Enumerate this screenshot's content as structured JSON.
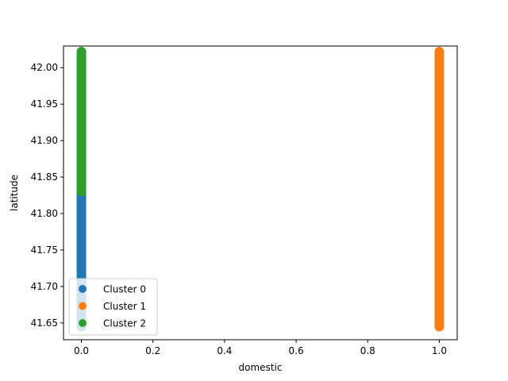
{
  "chart_data": {
    "type": "scatter",
    "title": "",
    "xlabel": "domestic",
    "ylabel": "latitude",
    "xlim": [
      -0.05,
      1.05
    ],
    "ylim": [
      41.627,
      42.0296
    ],
    "xticks": [
      0.0,
      0.2,
      0.4,
      0.6,
      0.8,
      1.0
    ],
    "xtick_labels": [
      "0.0",
      "0.2",
      "0.4",
      "0.6",
      "0.8",
      "1.0"
    ],
    "yticks": [
      41.65,
      41.7,
      41.75,
      41.8,
      41.85,
      41.9,
      41.95,
      42.0
    ],
    "ytick_labels": [
      "41.65",
      "41.70",
      "41.75",
      "41.80",
      "41.85",
      "41.90",
      "41.95",
      "42.00"
    ],
    "grid": false,
    "legend_position": "lower-left",
    "series": [
      {
        "name": "Cluster 0",
        "color": "#1f77b4",
        "x": 0,
        "y_min": 41.645,
        "y_max": 41.83
      },
      {
        "name": "Cluster 1",
        "color": "#ff7f0e",
        "x": 1,
        "y_min": 41.645,
        "y_max": 42.022
      },
      {
        "name": "Cluster 2",
        "color": "#2ca02c",
        "x": 0,
        "y_min": 41.83,
        "y_max": 42.022
      }
    ]
  }
}
